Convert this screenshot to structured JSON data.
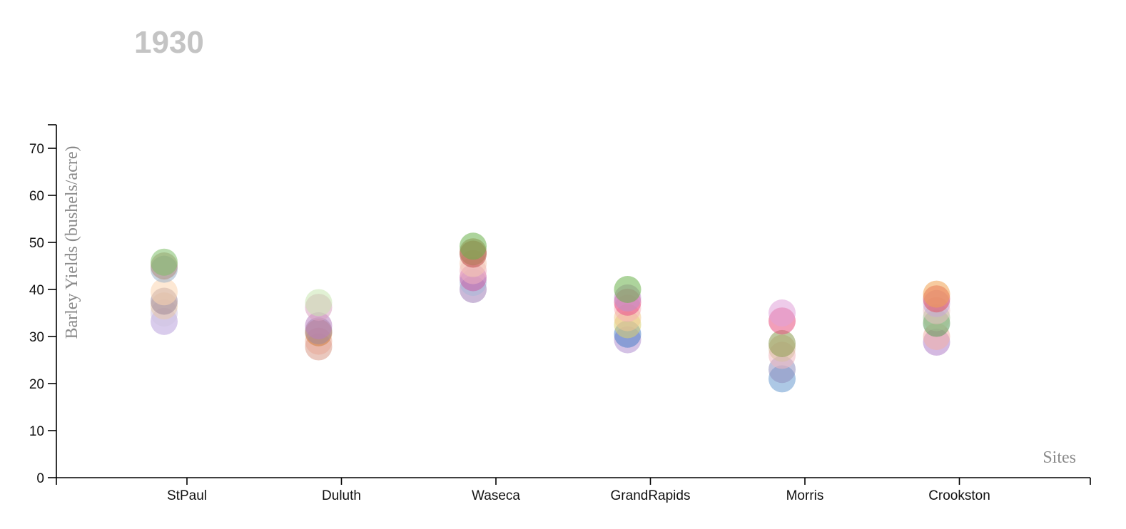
{
  "chart_data": {
    "type": "scatter",
    "title": "1930",
    "xlabel": "Sites",
    "ylabel": "Barley Yields (bushels/acre)",
    "ylim": [
      0,
      75
    ],
    "yticks": [
      0,
      10,
      20,
      30,
      40,
      50,
      60,
      70
    ],
    "categories": [
      "StPaul",
      "Duluth",
      "Waseca",
      "GrandRapids",
      "Morris",
      "Crookston"
    ],
    "grid": false,
    "points": [
      {
        "site": "StPaul",
        "y": 33.2,
        "color": "#b9a2dd"
      },
      {
        "site": "StPaul",
        "y": 35.0,
        "color": "#cfc5e2"
      },
      {
        "site": "StPaul",
        "y": 36.5,
        "color": "#e8c8a8"
      },
      {
        "site": "StPaul",
        "y": 37.5,
        "color": "#a08a9a"
      },
      {
        "site": "StPaul",
        "y": 39.5,
        "color": "#fcd6b0"
      },
      {
        "site": "StPaul",
        "y": 44.3,
        "color": "#9ab0c8"
      },
      {
        "site": "StPaul",
        "y": 45.0,
        "color": "#b08a7a"
      },
      {
        "site": "StPaul",
        "y": 45.8,
        "color": "#7fbf6a"
      },
      {
        "site": "Duluth",
        "y": 27.8,
        "color": "#d99a88"
      },
      {
        "site": "Duluth",
        "y": 29.0,
        "color": "#e8aa98"
      },
      {
        "site": "Duluth",
        "y": 30.8,
        "color": "#d08040"
      },
      {
        "site": "Duluth",
        "y": 31.2,
        "color": "#a08a9a"
      },
      {
        "site": "Duluth",
        "y": 32.3,
        "color": "#b87fc0"
      },
      {
        "site": "Duluth",
        "y": 36.2,
        "color": "#d9a0c0"
      },
      {
        "site": "Duluth",
        "y": 37.2,
        "color": "#c8e6b0"
      },
      {
        "site": "Waseca",
        "y": 40.0,
        "color": "#a080b8"
      },
      {
        "site": "Waseca",
        "y": 41.5,
        "color": "#a9b8d8"
      },
      {
        "site": "Waseca",
        "y": 42.5,
        "color": "#c85fa8"
      },
      {
        "site": "Waseca",
        "y": 44.0,
        "color": "#f0b0c0"
      },
      {
        "site": "Waseca",
        "y": 45.5,
        "color": "#f4c8b0"
      },
      {
        "site": "Waseca",
        "y": 47.5,
        "color": "#c0504a"
      },
      {
        "site": "Waseca",
        "y": 48.0,
        "color": "#b07858"
      },
      {
        "site": "Waseca",
        "y": 49.2,
        "color": "#6ab04a"
      },
      {
        "site": "GrandRapids",
        "y": 29.3,
        "color": "#b090d0"
      },
      {
        "site": "GrandRapids",
        "y": 30.5,
        "color": "#4a80c8"
      },
      {
        "site": "GrandRapids",
        "y": 32.5,
        "color": "#d8d070"
      },
      {
        "site": "GrandRapids",
        "y": 34.0,
        "color": "#f0c890"
      },
      {
        "site": "GrandRapids",
        "y": 36.0,
        "color": "#f8b0b8"
      },
      {
        "site": "GrandRapids",
        "y": 37.3,
        "color": "#e8508a"
      },
      {
        "site": "GrandRapids",
        "y": 38.2,
        "color": "#c090c8"
      },
      {
        "site": "GrandRapids",
        "y": 40.0,
        "color": "#6ab04a"
      },
      {
        "site": "Morris",
        "y": 21.0,
        "color": "#6a9ad0"
      },
      {
        "site": "Morris",
        "y": 23.0,
        "color": "#9090c0"
      },
      {
        "site": "Morris",
        "y": 26.0,
        "color": "#f0b8c0"
      },
      {
        "site": "Morris",
        "y": 27.5,
        "color": "#d8c0a0"
      },
      {
        "site": "Morris",
        "y": 28.5,
        "color": "#8a9a50"
      },
      {
        "site": "Morris",
        "y": 33.3,
        "color": "#e85080"
      },
      {
        "site": "Morris",
        "y": 35.0,
        "color": "#e0a0d8"
      },
      {
        "site": "Crookston",
        "y": 28.8,
        "color": "#b080c8"
      },
      {
        "site": "Crookston",
        "y": 30.0,
        "color": "#f0b0a8"
      },
      {
        "site": "Crookston",
        "y": 32.8,
        "color": "#5a9a5a"
      },
      {
        "site": "Crookston",
        "y": 34.0,
        "color": "#a0c090"
      },
      {
        "site": "Crookston",
        "y": 35.5,
        "color": "#e8c0c0"
      },
      {
        "site": "Crookston",
        "y": 37.0,
        "color": "#c8a8d8"
      },
      {
        "site": "Crookston",
        "y": 38.0,
        "color": "#e05060"
      },
      {
        "site": "Crookston",
        "y": 39.0,
        "color": "#f0a050"
      }
    ]
  }
}
